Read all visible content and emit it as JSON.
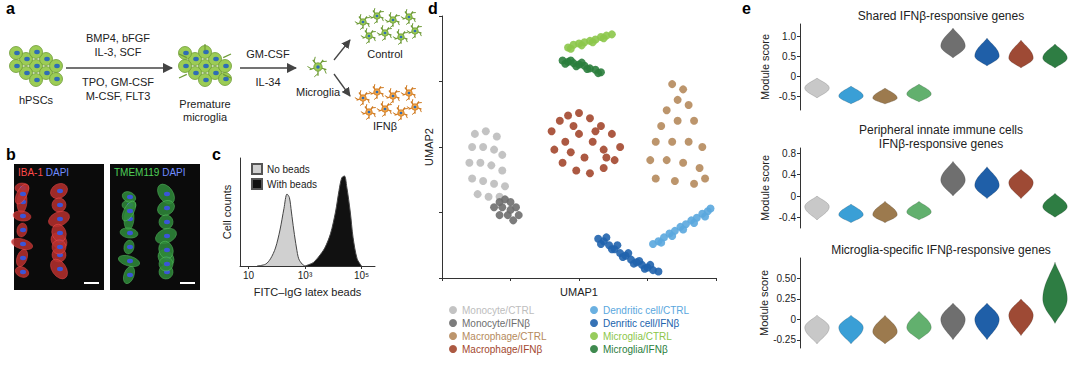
{
  "panel_labels": [
    "a",
    "b",
    "c",
    "d",
    "e"
  ],
  "protocol": {
    "start": "hPSCs",
    "step1_above": [
      "BMP4, bFGF",
      "IL-3, SCF"
    ],
    "step1_below": [
      "TPO, GM-CSF",
      "M-CSF, FLT3"
    ],
    "intermediate": [
      "Premature",
      "microglia"
    ],
    "step2_above": "GM-CSF",
    "step2_below": "IL-34",
    "product": "Microglia",
    "branches": [
      "Control",
      "IFNβ"
    ]
  },
  "micrographs": [
    {
      "stain": "IBA-1",
      "counterstain": "DAPI"
    },
    {
      "stain": "TMEM119",
      "counterstain": "DAPI"
    }
  ],
  "chart_data": [
    {
      "type": "area",
      "xlabel": "FITC–IgG latex beads",
      "ylabel": "Cell counts",
      "log": "x",
      "xlim": [
        5,
        300000
      ],
      "xticks": [
        10,
        {
          "value": 1000,
          "label": "10³"
        },
        {
          "value": 100000,
          "label": "10⁵"
        }
      ],
      "ylim": [
        0,
        300
      ],
      "tick_labels": "x",
      "legend": "top-left",
      "series": [
        {
          "name": "No beads",
          "color": "#d0d0d0",
          "x": [
            20,
            40,
            60,
            90,
            130,
            180,
            230,
            280,
            330,
            400,
            500,
            600,
            800,
            1000
          ],
          "values": [
            0,
            5,
            20,
            50,
            100,
            160,
            200,
            190,
            150,
            100,
            50,
            20,
            5,
            0
          ]
        },
        {
          "name": "With beads",
          "color": "#111111",
          "x": [
            1000,
            1500,
            2000,
            3000,
            5000,
            8000,
            12000,
            16000,
            20000,
            25000,
            30000,
            40000,
            50000,
            70000,
            100000
          ],
          "values": [
            0,
            5,
            10,
            25,
            50,
            90,
            150,
            210,
            245,
            250,
            220,
            150,
            80,
            20,
            0
          ]
        }
      ]
    },
    {
      "type": "scatter",
      "xlabel": "UMAP1",
      "ylabel": "UMAP2",
      "xlim": [
        0,
        100
      ],
      "ylim": [
        0,
        100
      ],
      "xticks": [
        0,
        25,
        50,
        75,
        100
      ],
      "yticks": [
        0,
        25,
        50,
        75,
        100
      ],
      "tick_labels": false,
      "legend": "bottom",
      "series": [
        {
          "name": "Monocyte/CTRL",
          "color": "#bdbdbd",
          "x": [
            12,
            16,
            20,
            11,
            15,
            19,
            22,
            10,
            14,
            18,
            22,
            11,
            15,
            19,
            23,
            13,
            17,
            21
          ],
          "values": [
            55,
            56,
            54,
            50,
            50,
            49,
            47,
            44,
            44,
            43,
            41,
            38,
            37,
            36,
            35,
            32,
            31,
            31
          ]
        },
        {
          "name": "Monocyte/IFNβ",
          "color": "#6e6e6e",
          "x": [
            19,
            21,
            23,
            25,
            27,
            28,
            24,
            21,
            26,
            22,
            25
          ],
          "values": [
            27,
            29,
            30,
            29,
            27,
            24,
            24,
            24,
            22,
            27,
            26
          ]
        },
        {
          "name": "Macrophage/CTRL",
          "color": "#b58a5c",
          "x": [
            84,
            88,
            86,
            82,
            90,
            80,
            86,
            92,
            78,
            84,
            90,
            95,
            76,
            82,
            88,
            94,
            78,
            85,
            92,
            96
          ],
          "values": [
            74,
            72,
            68,
            64,
            66,
            58,
            60,
            60,
            52,
            52,
            52,
            50,
            45,
            45,
            44,
            42,
            38,
            37,
            36,
            38
          ]
        },
        {
          "name": "Macrophage/IFNβ",
          "color": "#a3472e",
          "x": [
            40,
            43,
            46,
            50,
            54,
            58,
            62,
            65,
            63,
            59,
            54,
            49,
            44,
            41,
            45,
            50,
            55,
            59,
            52,
            47,
            56,
            48,
            60
          ],
          "values": [
            56,
            60,
            62,
            63,
            61,
            58,
            55,
            50,
            45,
            42,
            40,
            41,
            44,
            49,
            52,
            55,
            52,
            49,
            46,
            48,
            56,
            58,
            46
          ]
        },
        {
          "name": "Dendritic cell/CTRL",
          "color": "#5aa7de",
          "x": [
            77,
            79,
            81,
            83,
            85,
            87,
            89,
            91,
            93,
            95,
            97,
            98,
            80,
            84,
            88,
            92,
            96
          ],
          "values": [
            13,
            14,
            15.5,
            17,
            18,
            19.5,
            20.5,
            22,
            23,
            24.5,
            25.5,
            26.5,
            13.5,
            16,
            18.5,
            21,
            23.5
          ]
        },
        {
          "name": "Denritic cell/IFNβ",
          "color": "#2063ad",
          "x": [
            57,
            59,
            61,
            63,
            65,
            67,
            69,
            71,
            73,
            75,
            77,
            79,
            58,
            62,
            66,
            70,
            74,
            60,
            64,
            68,
            72,
            76
          ],
          "values": [
            15,
            14,
            12.5,
            11,
            9.5,
            8.5,
            7,
            6,
            5,
            4,
            3,
            2.5,
            13,
            11,
            8,
            5.5,
            3.5,
            15.5,
            12.5,
            9.5,
            6.5,
            5
          ]
        },
        {
          "name": "Microglia/CTRL",
          "color": "#8cc64a",
          "x": [
            46,
            48,
            50,
            52,
            54,
            56,
            58,
            60,
            62,
            47,
            51,
            55,
            59
          ],
          "values": [
            88,
            89,
            89.5,
            90,
            90.5,
            91,
            92,
            92.5,
            93,
            87.5,
            88.8,
            90,
            91.5
          ]
        },
        {
          "name": "Microglia/IFNβ",
          "color": "#2a7d3c",
          "x": [
            44,
            46,
            48,
            50,
            52,
            54,
            56,
            58,
            45,
            49,
            53,
            57,
            47,
            51
          ],
          "values": [
            83,
            82.5,
            82,
            81.5,
            81,
            80,
            79.5,
            78.5,
            81.8,
            80.8,
            79.8,
            78.2,
            83,
            82.2
          ]
        }
      ]
    },
    {
      "type": "violin",
      "title": "Shared IFNβ-responsive genes",
      "ylabel": "Module score",
      "categories": [
        "Monocyte/CTRL",
        "Dendritic cell/CTRL",
        "Macrophage/CTRL",
        "Microglia/CTRL",
        "Monocyte/IFNβ",
        "Denritic cell/IFNβ",
        "Macrophage/IFNβ",
        "Microglia/IFNβ"
      ],
      "colors": [
        "#c8c8c8",
        "#3a9fd6",
        "#9c7a4e",
        "#62b06e",
        "#6f6f6f",
        "#1f5fa8",
        "#9e4a35",
        "#2e7d43"
      ],
      "min": [
        -0.55,
        -0.7,
        -0.7,
        -0.65,
        0.45,
        0.25,
        0.2,
        0.2
      ],
      "mode": [
        -0.3,
        -0.5,
        -0.55,
        -0.45,
        0.75,
        0.5,
        0.45,
        0.45
      ],
      "max": [
        -0.05,
        -0.25,
        -0.3,
        -0.2,
        1.2,
        0.95,
        0.9,
        0.8
      ],
      "ylim": [
        -0.85,
        1.3
      ],
      "yticks": [
        -0.5,
        0,
        0.5,
        {
          "value": 1,
          "label": "1.0"
        }
      ],
      "tick_labels": "y"
    },
    {
      "type": "violin",
      "title": "Peripheral innate immune cells\nIFNβ-responsive genes",
      "ylabel": "Module score",
      "categories": [
        "Monocyte/CTRL",
        "Dendritic cell/CTRL",
        "Macrophage/CTRL",
        "Microglia/CTRL",
        "Monocyte/IFNβ",
        "Denritic cell/IFNβ",
        "Macrophage/IFNβ",
        "Microglia/IFNβ"
      ],
      "colors": [
        "#c8c8c8",
        "#3a9fd6",
        "#9c7a4e",
        "#62b06e",
        "#6f6f6f",
        "#1f5fa8",
        "#9e4a35",
        "#2e7d43"
      ],
      "min": [
        -0.45,
        -0.5,
        -0.5,
        -0.45,
        0,
        -0.05,
        -0.05,
        -0.4
      ],
      "mode": [
        -0.2,
        -0.35,
        -0.35,
        -0.3,
        0.3,
        0.2,
        0.25,
        -0.2
      ],
      "max": [
        0,
        -0.15,
        -0.1,
        -0.1,
        0.65,
        0.55,
        0.5,
        0.05
      ],
      "ylim": [
        -0.6,
        0.9
      ],
      "yticks": [
        -0.4,
        0,
        0.4,
        0.8
      ],
      "tick_labels": "y"
    },
    {
      "type": "violin",
      "title": "Microglia-specific IFNβ-responsive genes",
      "ylabel": "Module score",
      "categories": [
        "Monocyte/CTRL",
        "Dendritic cell/CTRL",
        "Macrophage/CTRL",
        "Microglia/CTRL",
        "Monocyte/IFNβ",
        "Denritic cell/IFNβ",
        "Macrophage/IFNβ",
        "Microglia/IFNβ"
      ],
      "colors": [
        "#c8c8c8",
        "#3a9fd6",
        "#9c7a4e",
        "#62b06e",
        "#6f6f6f",
        "#1f5fa8",
        "#9e4a35",
        "#2e7d43"
      ],
      "min": [
        -0.3,
        -0.3,
        -0.3,
        -0.25,
        -0.25,
        -0.25,
        -0.2,
        -0.05
      ],
      "mode": [
        -0.1,
        -0.1,
        -0.15,
        -0.1,
        0,
        0,
        0.05,
        0.25
      ],
      "max": [
        0.05,
        0.05,
        0.05,
        0.1,
        0.2,
        0.2,
        0.25,
        0.7
      ],
      "ylim": [
        -0.35,
        0.75
      ],
      "yticks": [
        -0.25,
        0,
        0.25,
        {
          "value": 0.5,
          "label": "0.50"
        }
      ],
      "tick_labels": "y"
    }
  ]
}
